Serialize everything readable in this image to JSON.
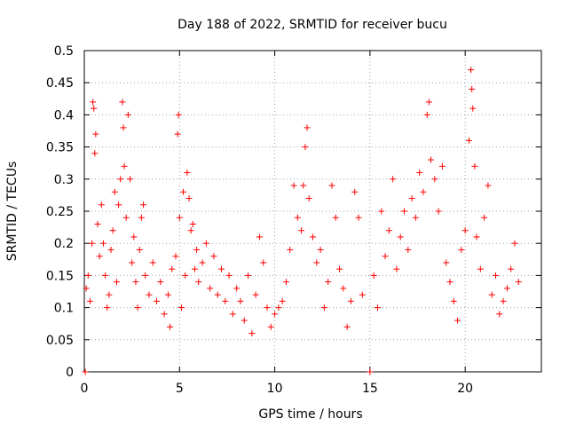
{
  "chart_data": {
    "type": "scatter",
    "title": "Day 188 of 2022, SRMTID for receiver bucu",
    "xlabel": "GPS time / hours",
    "ylabel": "SRMTID / TECUs",
    "xlim": [
      0,
      24
    ],
    "ylim": [
      0,
      0.5
    ],
    "xticks": [
      0,
      5,
      10,
      15,
      20
    ],
    "xtick_labels": [
      "0",
      "5",
      "10",
      "15",
      "20"
    ],
    "yticks": [
      0,
      0.05,
      0.1,
      0.15,
      0.2,
      0.25,
      0.3,
      0.35,
      0.4,
      0.45,
      0.5
    ],
    "ytick_labels": [
      "0",
      "0.05",
      "0.1",
      "0.15",
      "0.2",
      "0.25",
      "0.3",
      "0.35",
      "0.4",
      "0.45",
      "0.5"
    ],
    "grid": true,
    "marker": "+",
    "color": "#ff0000",
    "series": [
      {
        "name": "SRMTID",
        "points": [
          [
            0.05,
            0.0
          ],
          [
            0.1,
            0.13
          ],
          [
            0.2,
            0.15
          ],
          [
            0.3,
            0.11
          ],
          [
            0.4,
            0.2
          ],
          [
            0.45,
            0.42
          ],
          [
            0.5,
            0.41
          ],
          [
            0.55,
            0.34
          ],
          [
            0.6,
            0.37
          ],
          [
            0.7,
            0.23
          ],
          [
            0.8,
            0.18
          ],
          [
            0.9,
            0.26
          ],
          [
            1.0,
            0.2
          ],
          [
            1.1,
            0.15
          ],
          [
            1.2,
            0.1
          ],
          [
            1.3,
            0.12
          ],
          [
            1.4,
            0.19
          ],
          [
            1.5,
            0.22
          ],
          [
            1.6,
            0.28
          ],
          [
            1.7,
            0.14
          ],
          [
            1.8,
            0.26
          ],
          [
            1.9,
            0.3
          ],
          [
            2.0,
            0.42
          ],
          [
            2.05,
            0.38
          ],
          [
            2.1,
            0.32
          ],
          [
            2.2,
            0.24
          ],
          [
            2.3,
            0.4
          ],
          [
            2.4,
            0.3
          ],
          [
            2.5,
            0.17
          ],
          [
            2.6,
            0.21
          ],
          [
            2.7,
            0.14
          ],
          [
            2.8,
            0.1
          ],
          [
            2.9,
            0.19
          ],
          [
            3.0,
            0.24
          ],
          [
            3.1,
            0.26
          ],
          [
            3.2,
            0.15
          ],
          [
            3.4,
            0.12
          ],
          [
            3.6,
            0.17
          ],
          [
            3.8,
            0.11
          ],
          [
            4.0,
            0.14
          ],
          [
            4.2,
            0.09
          ],
          [
            4.4,
            0.12
          ],
          [
            4.5,
            0.07
          ],
          [
            4.6,
            0.16
          ],
          [
            4.8,
            0.18
          ],
          [
            4.9,
            0.37
          ],
          [
            4.95,
            0.4
          ],
          [
            5.0,
            0.24
          ],
          [
            5.1,
            0.1
          ],
          [
            5.2,
            0.28
          ],
          [
            5.3,
            0.15
          ],
          [
            5.4,
            0.31
          ],
          [
            5.5,
            0.27
          ],
          [
            5.6,
            0.22
          ],
          [
            5.7,
            0.23
          ],
          [
            5.8,
            0.16
          ],
          [
            5.9,
            0.19
          ],
          [
            6.0,
            0.14
          ],
          [
            6.2,
            0.17
          ],
          [
            6.4,
            0.2
          ],
          [
            6.6,
            0.13
          ],
          [
            6.8,
            0.18
          ],
          [
            7.0,
            0.12
          ],
          [
            7.2,
            0.16
          ],
          [
            7.4,
            0.11
          ],
          [
            7.6,
            0.15
          ],
          [
            7.8,
            0.09
          ],
          [
            8.0,
            0.13
          ],
          [
            8.2,
            0.11
          ],
          [
            8.4,
            0.08
          ],
          [
            8.6,
            0.15
          ],
          [
            8.8,
            0.06
          ],
          [
            9.0,
            0.12
          ],
          [
            9.2,
            0.21
          ],
          [
            9.4,
            0.17
          ],
          [
            9.6,
            0.1
          ],
          [
            9.8,
            0.07
          ],
          [
            10.0,
            0.09
          ],
          [
            10.2,
            0.1
          ],
          [
            10.4,
            0.11
          ],
          [
            10.6,
            0.14
          ],
          [
            10.8,
            0.19
          ],
          [
            11.0,
            0.29
          ],
          [
            11.2,
            0.24
          ],
          [
            11.4,
            0.22
          ],
          [
            11.5,
            0.29
          ],
          [
            11.6,
            0.35
          ],
          [
            11.7,
            0.38
          ],
          [
            11.8,
            0.27
          ],
          [
            12.0,
            0.21
          ],
          [
            12.2,
            0.17
          ],
          [
            12.4,
            0.19
          ],
          [
            12.6,
            0.1
          ],
          [
            12.8,
            0.14
          ],
          [
            13.0,
            0.29
          ],
          [
            13.2,
            0.24
          ],
          [
            13.4,
            0.16
          ],
          [
            13.6,
            0.13
          ],
          [
            13.8,
            0.07
          ],
          [
            14.0,
            0.11
          ],
          [
            14.2,
            0.28
          ],
          [
            14.4,
            0.24
          ],
          [
            14.6,
            0.12
          ],
          [
            15.0,
            0.0
          ],
          [
            15.2,
            0.15
          ],
          [
            15.4,
            0.1
          ],
          [
            15.6,
            0.25
          ],
          [
            15.8,
            0.18
          ],
          [
            16.0,
            0.22
          ],
          [
            16.2,
            0.3
          ],
          [
            16.4,
            0.16
          ],
          [
            16.6,
            0.21
          ],
          [
            16.8,
            0.25
          ],
          [
            17.0,
            0.19
          ],
          [
            17.2,
            0.27
          ],
          [
            17.4,
            0.24
          ],
          [
            17.6,
            0.31
          ],
          [
            17.8,
            0.28
          ],
          [
            18.0,
            0.4
          ],
          [
            18.1,
            0.42
          ],
          [
            18.2,
            0.33
          ],
          [
            18.4,
            0.3
          ],
          [
            18.6,
            0.25
          ],
          [
            18.8,
            0.32
          ],
          [
            19.0,
            0.17
          ],
          [
            19.2,
            0.14
          ],
          [
            19.4,
            0.11
          ],
          [
            19.6,
            0.08
          ],
          [
            19.8,
            0.19
          ],
          [
            20.0,
            0.22
          ],
          [
            20.2,
            0.36
          ],
          [
            20.3,
            0.47
          ],
          [
            20.35,
            0.44
          ],
          [
            20.4,
            0.41
          ],
          [
            20.5,
            0.32
          ],
          [
            20.6,
            0.21
          ],
          [
            20.8,
            0.16
          ],
          [
            21.0,
            0.24
          ],
          [
            21.2,
            0.29
          ],
          [
            21.4,
            0.12
          ],
          [
            21.6,
            0.15
          ],
          [
            21.8,
            0.09
          ],
          [
            22.0,
            0.11
          ],
          [
            22.2,
            0.13
          ],
          [
            22.4,
            0.16
          ],
          [
            22.6,
            0.2
          ],
          [
            22.8,
            0.14
          ]
        ]
      }
    ]
  }
}
